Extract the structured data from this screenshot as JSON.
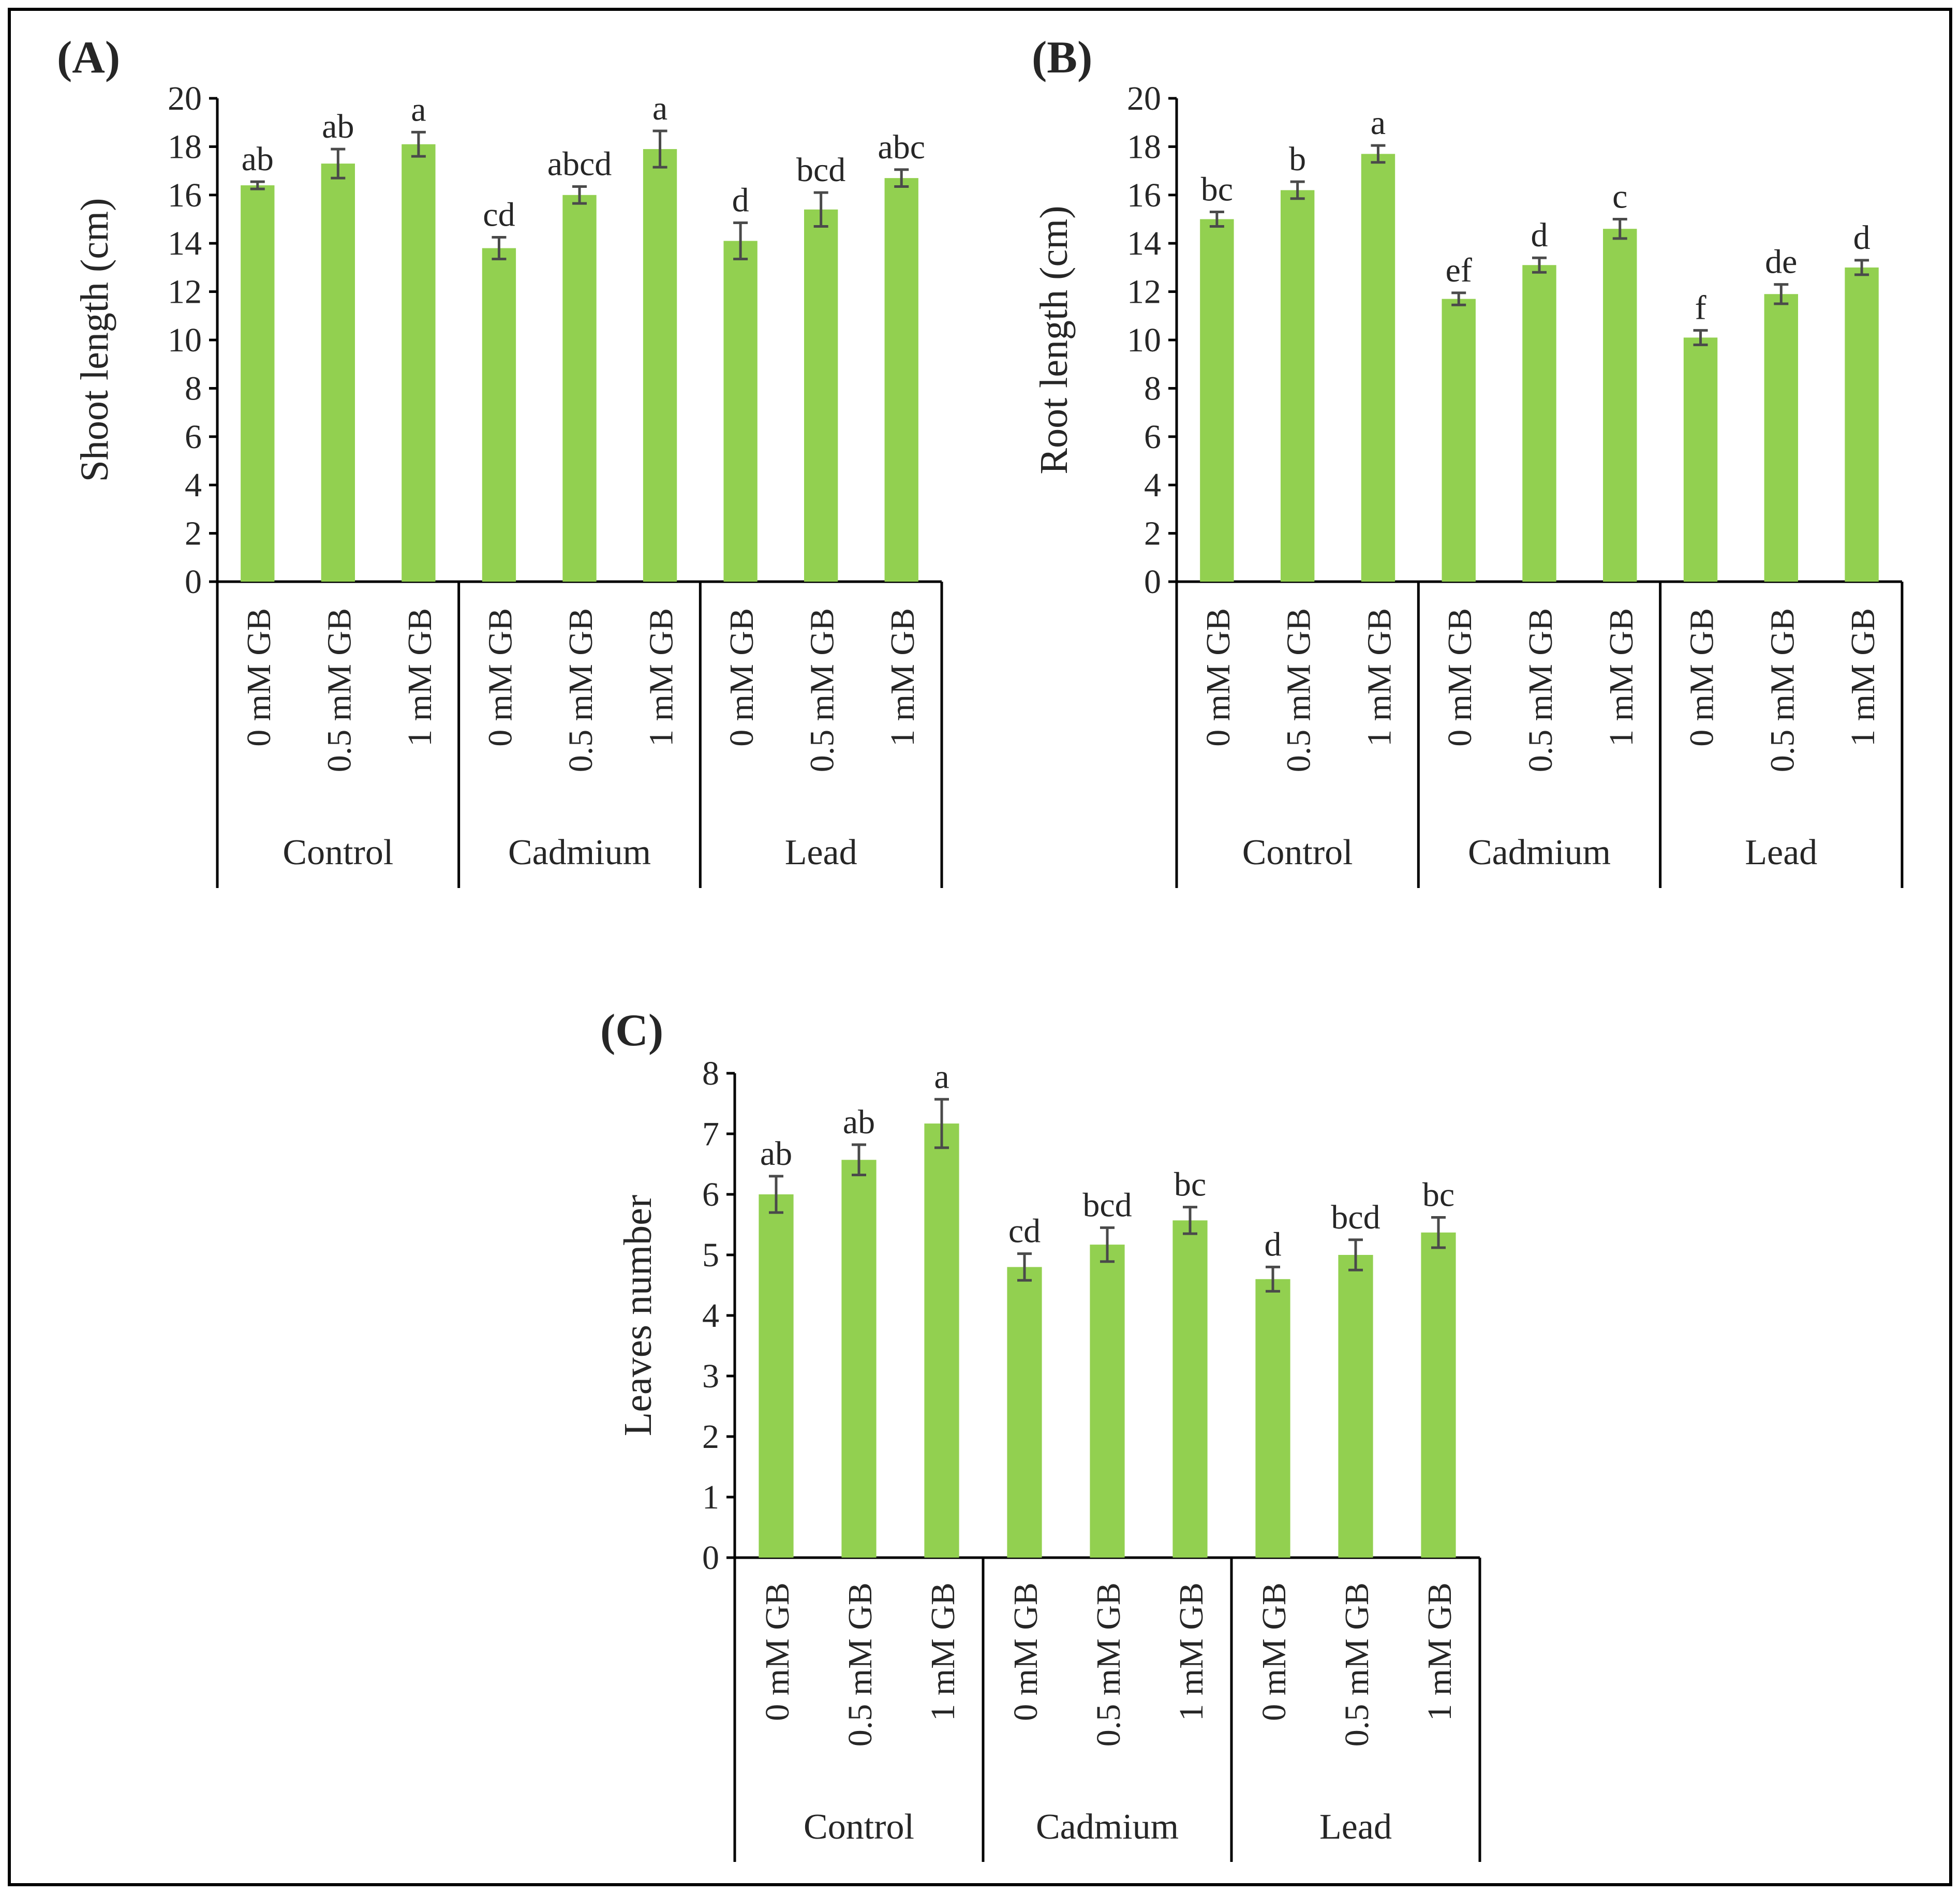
{
  "figure": {
    "colors": {
      "bar": "#92D050",
      "error_bar": "#4a4a4a",
      "axis": "#000000",
      "text": "#262626",
      "frame": "#000000"
    }
  },
  "chart_data": [
    {
      "panel_label": "(A)",
      "type": "bar",
      "ylabel": "Shoot length (cm)",
      "xlabel": "",
      "ylim": [
        0,
        20
      ],
      "yticks": [
        0,
        2,
        4,
        6,
        8,
        10,
        12,
        14,
        16,
        18,
        20
      ],
      "groups": [
        "Control",
        "Cadmium",
        "Lead"
      ],
      "categories": [
        "0 mM GB",
        "0.5 mM GB",
        "1 mM GB",
        "0 mM GB",
        "0.5 mM GB",
        "1 mM GB",
        "0 mM GB",
        "0.5 mM GB",
        "1 mM GB"
      ],
      "values": [
        16.4,
        17.3,
        18.1,
        13.8,
        16.0,
        17.9,
        14.1,
        15.4,
        16.7
      ],
      "errors": [
        0.15,
        0.6,
        0.5,
        0.45,
        0.35,
        0.75,
        0.75,
        0.7,
        0.35
      ],
      "letters": [
        "ab",
        "ab",
        "a",
        "cd",
        "abcd",
        "a",
        "d",
        "bcd",
        "abc"
      ]
    },
    {
      "panel_label": "(B)",
      "type": "bar",
      "ylabel": "Root length (cm)",
      "xlabel": "",
      "ylim": [
        0,
        20
      ],
      "yticks": [
        0,
        2,
        4,
        6,
        8,
        10,
        12,
        14,
        16,
        18,
        20
      ],
      "groups": [
        "Control",
        "Cadmium",
        "Lead"
      ],
      "categories": [
        "0 mM GB",
        "0.5 mM GB",
        "1 mM GB",
        "0 mM GB",
        "0.5 mM GB",
        "1 mM GB",
        "0 mM GB",
        "0.5 mM GB",
        "1 mM GB"
      ],
      "values": [
        15.0,
        16.2,
        17.7,
        11.7,
        13.1,
        14.6,
        10.1,
        11.9,
        13.0
      ],
      "errors": [
        0.3,
        0.35,
        0.35,
        0.25,
        0.3,
        0.4,
        0.3,
        0.4,
        0.3
      ],
      "letters": [
        "bc",
        "b",
        "a",
        "ef",
        "d",
        "c",
        "f",
        "de",
        "d"
      ]
    },
    {
      "panel_label": "(C)",
      "type": "bar",
      "ylabel": "Leaves number",
      "xlabel": "",
      "ylim": [
        0,
        8
      ],
      "yticks": [
        0,
        1,
        2,
        3,
        4,
        5,
        6,
        7,
        8
      ],
      "groups": [
        "Control",
        "Cadmium",
        "Lead"
      ],
      "categories": [
        "0 mM GB",
        "0.5 mM GB",
        "1 mM GB",
        "0 mM GB",
        "0.5 mM GB",
        "1 mM GB",
        "0 mM GB",
        "0.5 mM GB",
        "1 mM GB"
      ],
      "values": [
        6.0,
        6.57,
        7.17,
        4.8,
        5.17,
        5.57,
        4.6,
        5.0,
        5.37
      ],
      "errors": [
        0.3,
        0.25,
        0.4,
        0.22,
        0.28,
        0.22,
        0.2,
        0.25,
        0.25
      ],
      "letters": [
        "ab",
        "ab",
        "a",
        "cd",
        "bcd",
        "bc",
        "d",
        "bcd",
        "bc"
      ]
    }
  ]
}
